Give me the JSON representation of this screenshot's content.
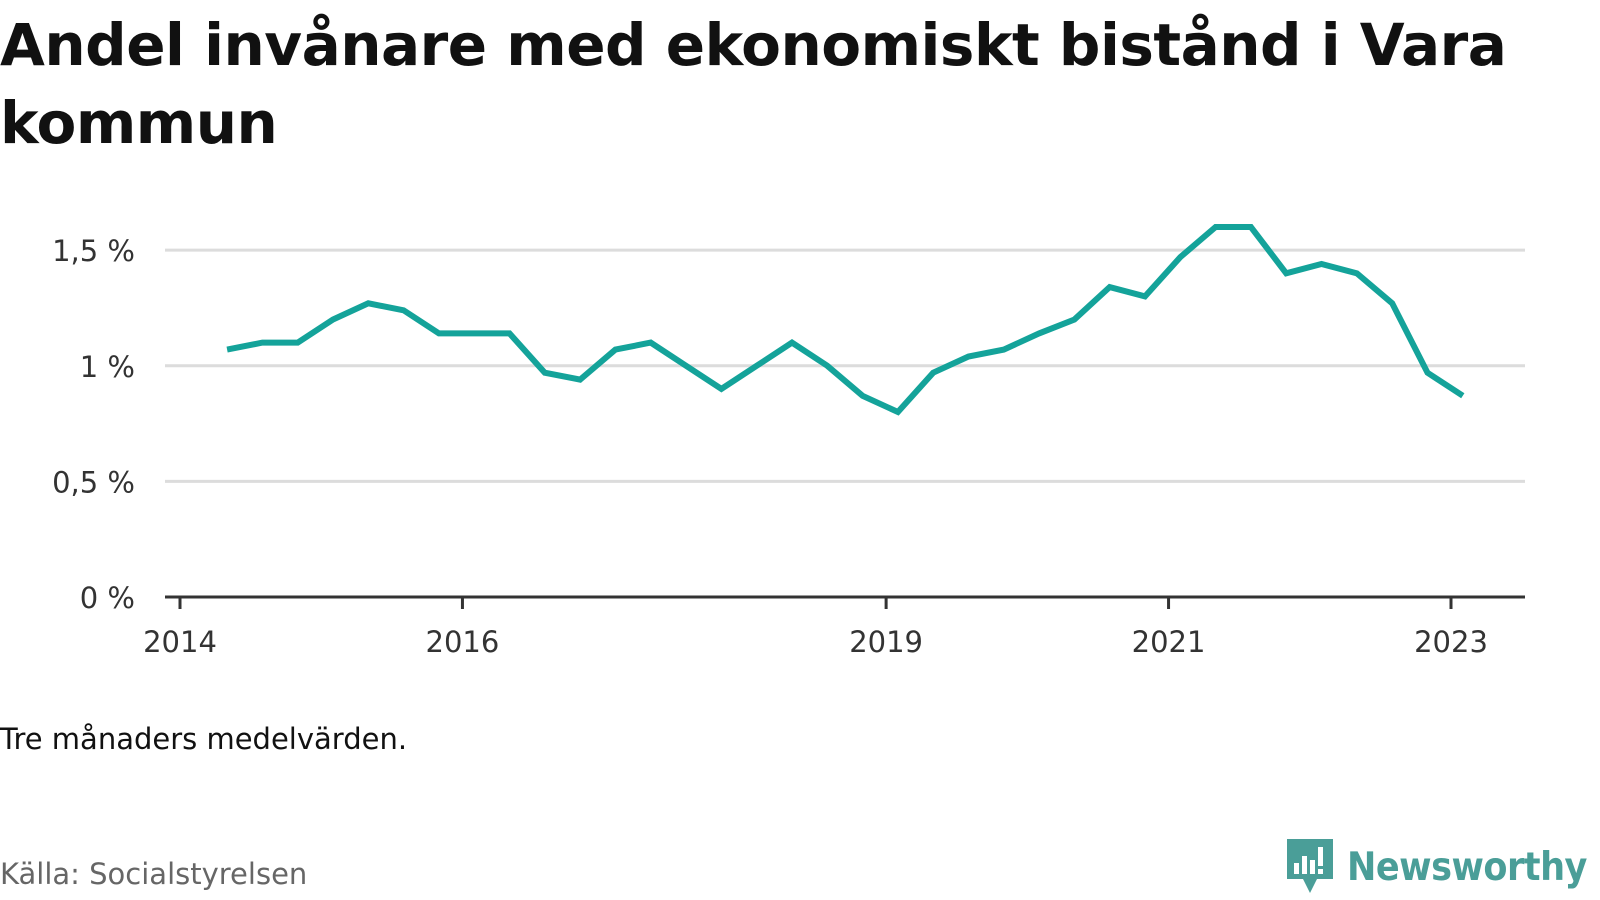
{
  "title": "Andel invånare med ekonomiskt bistånd i Vara kommun",
  "note": "Tre månaders medelvärden.",
  "source": "Källa: Socialstyrelsen",
  "brand": {
    "name": "Newsworthy",
    "color": "#4a9e98"
  },
  "colors": {
    "line": "#14a39a",
    "grid": "#dcdcdc",
    "axis": "#333333"
  },
  "chart_data": {
    "type": "line",
    "title": "Andel invånare med ekonomiskt bistånd i Vara kommun",
    "xlabel": "",
    "ylabel": "",
    "ylim": [
      0,
      1.6
    ],
    "yticks": [
      0,
      0.5,
      1,
      1.5
    ],
    "ytick_labels": [
      "0 %",
      "0,5 %",
      "1 %",
      "1,5 %"
    ],
    "xticks": [
      2014,
      2016,
      2019,
      2021,
      2023
    ],
    "xtick_labels": [
      "2014",
      "2016",
      "2019",
      "2021",
      "2023"
    ],
    "grid": true,
    "legend": "none",
    "series": [
      {
        "values": [
          {
            "x": "2014-05",
            "y": 1.07
          },
          {
            "x": "2014-08",
            "y": 1.1
          },
          {
            "x": "2014-11",
            "y": 1.1
          },
          {
            "x": "2015-02",
            "y": 1.2
          },
          {
            "x": "2015-05",
            "y": 1.27
          },
          {
            "x": "2015-08",
            "y": 1.24
          },
          {
            "x": "2015-11",
            "y": 1.14
          },
          {
            "x": "2016-02",
            "y": 1.14
          },
          {
            "x": "2016-05",
            "y": 1.14
          },
          {
            "x": "2016-08",
            "y": 0.97
          },
          {
            "x": "2016-11",
            "y": 0.94
          },
          {
            "x": "2017-02",
            "y": 1.07
          },
          {
            "x": "2017-05",
            "y": 1.1
          },
          {
            "x": "2017-08",
            "y": 1.0
          },
          {
            "x": "2017-11",
            "y": 0.9
          },
          {
            "x": "2018-02",
            "y": 1.0
          },
          {
            "x": "2018-05",
            "y": 1.1
          },
          {
            "x": "2018-08",
            "y": 1.0
          },
          {
            "x": "2018-11",
            "y": 0.87
          },
          {
            "x": "2019-02",
            "y": 0.8
          },
          {
            "x": "2019-05",
            "y": 0.97
          },
          {
            "x": "2019-08",
            "y": 1.04
          },
          {
            "x": "2019-11",
            "y": 1.07
          },
          {
            "x": "2020-02",
            "y": 1.14
          },
          {
            "x": "2020-05",
            "y": 1.2
          },
          {
            "x": "2020-08",
            "y": 1.34
          },
          {
            "x": "2020-11",
            "y": 1.3
          },
          {
            "x": "2021-02",
            "y": 1.47
          },
          {
            "x": "2021-05",
            "y": 1.6
          },
          {
            "x": "2021-08",
            "y": 1.6
          },
          {
            "x": "2021-11",
            "y": 1.4
          },
          {
            "x": "2022-02",
            "y": 1.44
          },
          {
            "x": "2022-05",
            "y": 1.4
          },
          {
            "x": "2022-08",
            "y": 1.27
          },
          {
            "x": "2022-11",
            "y": 0.97
          },
          {
            "x": "2023-02",
            "y": 0.87
          }
        ]
      }
    ]
  }
}
